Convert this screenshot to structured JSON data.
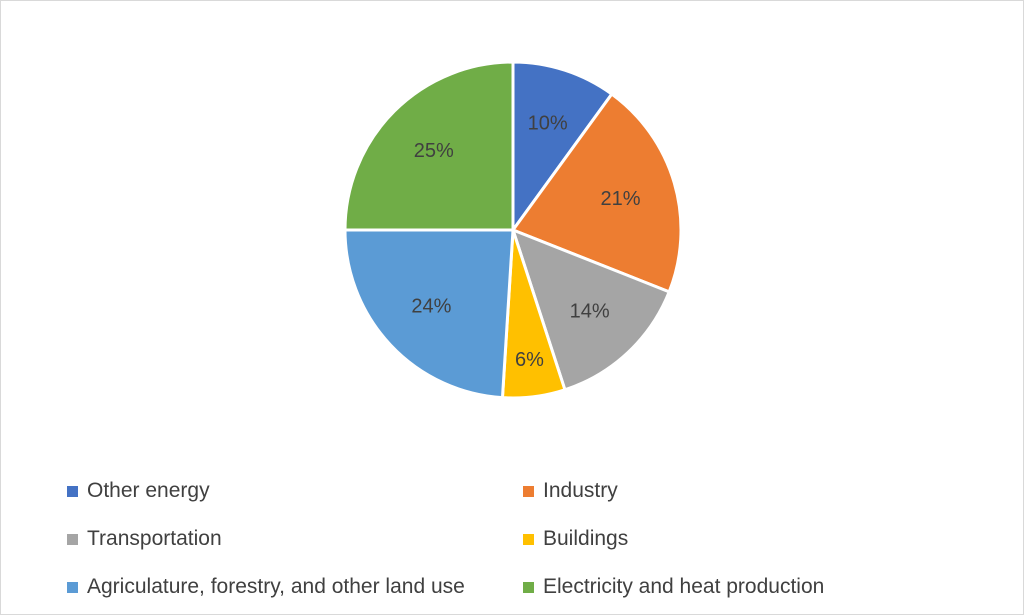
{
  "chart_data": {
    "type": "pie",
    "title": "",
    "slices": [
      {
        "label": "Other energy",
        "value": 10,
        "display": "10%",
        "color": "#4472C4"
      },
      {
        "label": "Industry",
        "value": 21,
        "display": "21%",
        "color": "#ED7D31"
      },
      {
        "label": "Transportation",
        "value": 14,
        "display": "14%",
        "color": "#A5A5A5"
      },
      {
        "label": "Buildings",
        "value": 6,
        "display": "6%",
        "color": "#FFC000"
      },
      {
        "label": "Agriculature, forestry, and other land use",
        "value": 24,
        "display": "24%",
        "color": "#5B9BD5"
      },
      {
        "label": "Electricity and heat production",
        "value": 25,
        "display": "25%",
        "color": "#70AD47"
      }
    ],
    "start_angle_deg": 0,
    "direction": "clockwise",
    "legend_placement": "bottom"
  }
}
